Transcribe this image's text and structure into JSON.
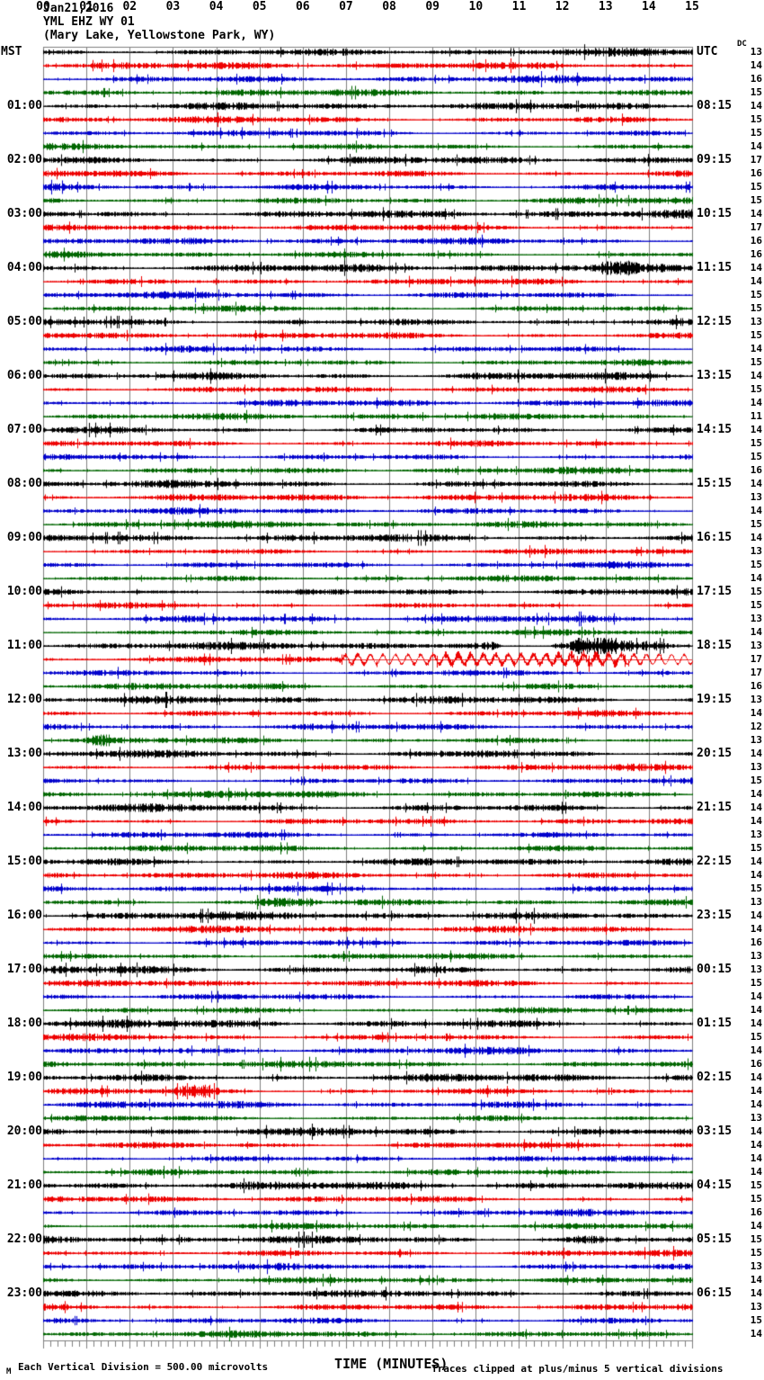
{
  "title": {
    "date": "Jan21,2016",
    "station": "YML EHZ WY 01",
    "location": "(Mary Lake, Yellowstone Park, WY)"
  },
  "axes": {
    "left_header": "MST",
    "right_header": "UTC",
    "dc_header": "DC",
    "xlabel": "TIME (MINUTES)",
    "x_ticks": [
      "00",
      "01",
      "02",
      "03",
      "04",
      "05",
      "06",
      "07",
      "08",
      "09",
      "10",
      "11",
      "12",
      "13",
      "14",
      "15"
    ],
    "footer_mark": "M",
    "footer_left": "Each Vertical Division =  500.00 microvolts",
    "footer_right": "Traces clipped at plus/minus 5 vertical divisions"
  },
  "chart_data": {
    "type": "line",
    "subtype": "helicorder-seismogram",
    "minutes_per_row": 15,
    "rows_per_hour": 4,
    "x_range": [
      0,
      15
    ],
    "grid": "vertical-every-minute",
    "minor_ticks_per_minute": 6,
    "colors": {
      "black": "#000000",
      "red": "#ee0000",
      "blue": "#0000cc",
      "green": "#006600",
      "grid": "#7f7f7f"
    },
    "color_cycle": [
      "black",
      "red",
      "blue",
      "green"
    ],
    "rows": [
      {
        "mst": "MST",
        "utc": "UTC",
        "dc": 13
      },
      {
        "dc": 14
      },
      {
        "dc": 16
      },
      {
        "dc": 15
      },
      {
        "mst": "01:00",
        "utc": "08:15",
        "dc": 14
      },
      {
        "dc": 15
      },
      {
        "dc": 15
      },
      {
        "dc": 14
      },
      {
        "mst": "02:00",
        "utc": "09:15",
        "dc": 17
      },
      {
        "dc": 16
      },
      {
        "dc": 15
      },
      {
        "dc": 15
      },
      {
        "mst": "03:00",
        "utc": "10:15",
        "dc": 14
      },
      {
        "dc": 17
      },
      {
        "dc": 16
      },
      {
        "dc": 16
      },
      {
        "mst": "04:00",
        "utc": "11:15",
        "dc": 14
      },
      {
        "dc": 14
      },
      {
        "dc": 15
      },
      {
        "dc": 15
      },
      {
        "mst": "05:00",
        "utc": "12:15",
        "dc": 13
      },
      {
        "dc": 15
      },
      {
        "dc": 14
      },
      {
        "dc": 15
      },
      {
        "mst": "06:00",
        "utc": "13:15",
        "dc": 14
      },
      {
        "dc": 15
      },
      {
        "dc": 14
      },
      {
        "dc": 11
      },
      {
        "mst": "07:00",
        "utc": "14:15",
        "dc": 14
      },
      {
        "dc": 15
      },
      {
        "dc": 15
      },
      {
        "dc": 16
      },
      {
        "mst": "08:00",
        "utc": "15:15",
        "dc": 14
      },
      {
        "dc": 13
      },
      {
        "dc": 14
      },
      {
        "dc": 15
      },
      {
        "mst": "09:00",
        "utc": "16:15",
        "dc": 14
      },
      {
        "dc": 13
      },
      {
        "dc": 15
      },
      {
        "dc": 14
      },
      {
        "mst": "10:00",
        "utc": "17:15",
        "dc": 15
      },
      {
        "dc": 15
      },
      {
        "dc": 13
      },
      {
        "dc": 14
      },
      {
        "mst": "11:00",
        "utc": "18:15",
        "dc": 13
      },
      {
        "dc": 17
      },
      {
        "dc": 17
      },
      {
        "dc": 16
      },
      {
        "mst": "12:00",
        "utc": "19:15",
        "dc": 13
      },
      {
        "dc": 14
      },
      {
        "dc": 12
      },
      {
        "dc": 13
      },
      {
        "mst": "13:00",
        "utc": "20:15",
        "dc": 14
      },
      {
        "dc": 13
      },
      {
        "dc": 15
      },
      {
        "dc": 14
      },
      {
        "mst": "14:00",
        "utc": "21:15",
        "dc": 14
      },
      {
        "dc": 14
      },
      {
        "dc": 13
      },
      {
        "dc": 15
      },
      {
        "mst": "15:00",
        "utc": "22:15",
        "dc": 14
      },
      {
        "dc": 14
      },
      {
        "dc": 15
      },
      {
        "dc": 13
      },
      {
        "mst": "16:00",
        "utc": "23:15",
        "dc": 14
      },
      {
        "dc": 14
      },
      {
        "dc": 16
      },
      {
        "dc": 13
      },
      {
        "mst": "17:00",
        "utc": "00:15",
        "dc": 13
      },
      {
        "dc": 15
      },
      {
        "dc": 14
      },
      {
        "dc": 14
      },
      {
        "mst": "18:00",
        "utc": "01:15",
        "dc": 14
      },
      {
        "dc": 15
      },
      {
        "dc": 14
      },
      {
        "dc": 16
      },
      {
        "mst": "19:00",
        "utc": "02:15",
        "dc": 14
      },
      {
        "dc": 14
      },
      {
        "dc": 14
      },
      {
        "dc": 13
      },
      {
        "mst": "20:00",
        "utc": "03:15",
        "dc": 14
      },
      {
        "dc": 14
      },
      {
        "dc": 14
      },
      {
        "dc": 14
      },
      {
        "mst": "21:00",
        "utc": "04:15",
        "dc": 15
      },
      {
        "dc": 15
      },
      {
        "dc": 16
      },
      {
        "dc": 14
      },
      {
        "mst": "22:00",
        "utc": "05:15",
        "dc": 15
      },
      {
        "dc": 15
      },
      {
        "dc": 13
      },
      {
        "dc": 14
      },
      {
        "mst": "23:00",
        "utc": "06:15",
        "dc": 14
      },
      {
        "dc": 13
      },
      {
        "dc": 15
      },
      {
        "dc": 14
      }
    ],
    "events": [
      {
        "row": 16,
        "start": 12.9,
        "end": 13.6,
        "amp": 1.7,
        "kind": "burst"
      },
      {
        "row": 27,
        "start": 8.0,
        "end": 8.8,
        "amp": 1.5,
        "kind": "burst"
      },
      {
        "row": 44,
        "start": 10.6,
        "end": 11.7,
        "amp": 0.15,
        "kind": "quiet"
      },
      {
        "row": 44,
        "start": 12.35,
        "end": 13.15,
        "amp": 3.8,
        "kind": "burst"
      },
      {
        "row": 44,
        "start": 13.2,
        "end": 14.3,
        "amp": 1.8,
        "kind": "burst"
      },
      {
        "row": 45,
        "start": 7.0,
        "end": 15.0,
        "amp": 2.0,
        "kind": "wavy"
      },
      {
        "row": 46,
        "start": 9.3,
        "end": 9.9,
        "amp": 1.7,
        "kind": "burst"
      },
      {
        "row": 51,
        "start": 1.15,
        "end": 1.5,
        "amp": 2.0,
        "kind": "burst"
      },
      {
        "row": 52,
        "start": 9.9,
        "end": 10.7,
        "amp": 1.7,
        "kind": "burst"
      },
      {
        "row": 63,
        "start": 3.8,
        "end": 4.2,
        "amp": 1.8,
        "kind": "burst"
      },
      {
        "row": 63,
        "start": 5.0,
        "end": 6.2,
        "amp": 2.3,
        "kind": "burst"
      },
      {
        "row": 77,
        "start": 3.2,
        "end": 3.9,
        "amp": 2.4,
        "kind": "burst"
      },
      {
        "row": 88,
        "start": 12.2,
        "end": 12.8,
        "amp": 1.6,
        "kind": "burst"
      }
    ]
  }
}
